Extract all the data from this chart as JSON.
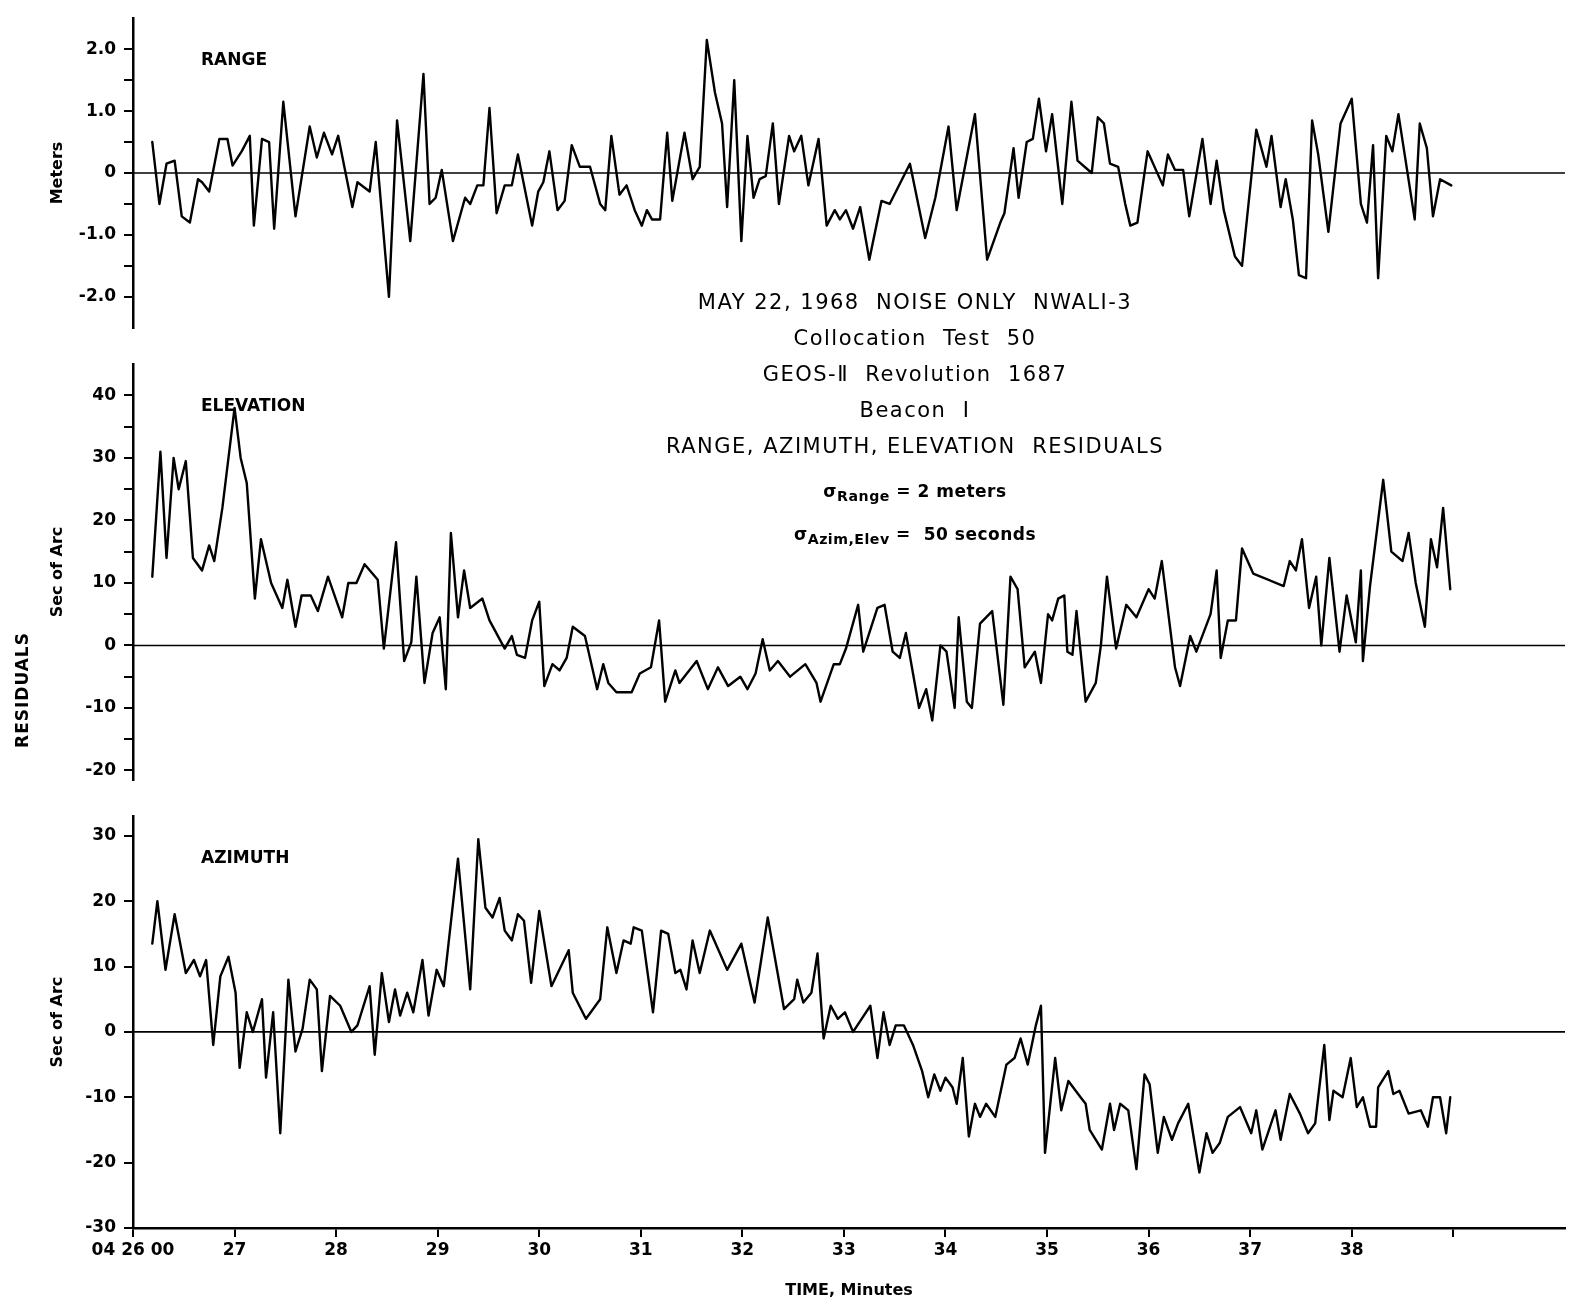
{
  "chart_data": [
    {
      "type": "line",
      "title": "RANGE",
      "ylabel": "Meters",
      "xlim": [
        26,
        40.1
      ],
      "ylim": [
        -2.5,
        2.5
      ],
      "yticks": [
        {
          "value": 2,
          "label": "2.0"
        },
        {
          "value": 1.5,
          "label": null
        },
        {
          "value": 1,
          "label": "1.0"
        },
        {
          "value": 0.5,
          "label": null
        },
        0,
        {
          "value": -0.5,
          "label": null
        },
        {
          "value": -1,
          "label": "-1.0"
        },
        {
          "value": -1.5,
          "label": null
        },
        {
          "value": -2,
          "label": "-2.0"
        }
      ],
      "tick_labels": "y",
      "marker": "none",
      "ref_lines": [
        {
          "axis": "y",
          "value": 0
        }
      ],
      "series": [
        {
          "color": "#000000",
          "x": [
            26.19,
            26.26,
            26.33,
            26.41,
            26.48,
            26.56,
            26.64,
            26.68,
            26.75,
            26.85,
            26.93,
            26.98,
            27.07,
            27.15,
            27.19,
            27.27,
            27.34,
            27.39,
            27.48,
            27.6,
            27.74,
            27.81,
            27.88,
            27.96,
            28.02,
            28.16,
            28.21,
            28.33,
            28.39,
            28.52,
            28.6,
            28.73,
            28.86,
            28.92,
            28.98,
            29.04,
            29.15,
            29.27,
            29.32,
            29.39,
            29.45,
            29.51,
            29.58,
            29.66,
            29.73,
            29.79,
            29.93,
            29.99,
            30.04,
            30.1,
            30.18,
            30.25,
            30.32,
            30.4,
            30.5,
            30.6,
            30.65,
            30.71,
            30.79,
            30.86,
            30.94,
            31.01,
            31.06,
            31.11,
            31.19,
            31.26,
            31.31,
            31.43,
            31.51,
            31.58,
            31.65,
            31.73,
            31.8,
            31.85,
            31.92,
            31.99,
            32.05,
            32.11,
            32.17,
            32.23,
            32.3,
            32.36,
            32.46,
            32.51,
            32.58,
            32.65,
            32.75,
            32.83,
            32.91,
            32.96,
            33.02,
            33.09,
            33.16,
            33.25,
            33.37,
            33.45,
            33.65,
            33.8,
            33.9,
            34.03,
            34.11,
            34.29,
            34.41,
            34.54,
            34.58,
            34.67,
            34.72,
            34.8,
            34.86,
            34.92,
            34.99,
            35.05,
            35.15,
            35.24,
            35.3,
            35.44,
            35.5,
            35.56,
            35.62,
            35.7,
            35.77,
            35.82,
            35.89,
            35.99,
            36.14,
            36.19,
            36.26,
            36.34,
            36.4,
            36.53,
            36.61,
            36.67,
            36.74,
            36.85,
            36.92,
            37.06,
            37.16,
            37.21,
            37.3,
            37.35,
            37.42,
            37.48,
            37.55,
            37.61,
            37.67,
            37.77,
            37.89,
            38.0,
            38.09,
            38.15,
            38.21,
            38.26,
            38.34,
            38.4,
            38.46,
            38.62,
            38.67,
            38.74,
            38.8,
            38.87,
            38.98
          ],
          "values": [
            0.5,
            -0.5,
            0.15,
            0.2,
            -0.7,
            -0.8,
            -0.1,
            -0.15,
            -0.3,
            0.55,
            0.55,
            0.12,
            0.35,
            0.6,
            -0.85,
            0.55,
            0.5,
            -0.9,
            1.15,
            -0.7,
            0.75,
            0.25,
            0.65,
            0.3,
            0.6,
            -0.55,
            -0.15,
            -0.3,
            0.5,
            -2.0,
            0.85,
            -1.1,
            1.6,
            -0.5,
            -0.4,
            0.05,
            -1.1,
            -0.4,
            -0.5,
            -0.2,
            -0.2,
            1.05,
            -0.65,
            -0.2,
            -0.2,
            0.3,
            -0.85,
            -0.3,
            -0.15,
            0.35,
            -0.6,
            -0.45,
            0.45,
            0.1,
            0.1,
            -0.5,
            -0.6,
            0.6,
            -0.35,
            -0.2,
            -0.6,
            -0.85,
            -0.6,
            -0.75,
            -0.75,
            0.65,
            -0.45,
            0.65,
            -0.1,
            0.1,
            2.15,
            1.3,
            0.8,
            -0.55,
            1.5,
            -1.1,
            0.6,
            -0.4,
            -0.1,
            -0.05,
            0.8,
            -0.5,
            0.6,
            0.35,
            0.6,
            -0.2,
            0.55,
            -0.85,
            -0.6,
            -0.75,
            -0.6,
            -0.9,
            -0.55,
            -1.4,
            -0.45,
            -0.5,
            0.15,
            -1.05,
            -0.4,
            0.75,
            -0.6,
            0.95,
            -1.4,
            -0.8,
            -0.65,
            0.4,
            -0.4,
            0.5,
            0.55,
            1.2,
            0.35,
            0.95,
            -0.5,
            1.15,
            0.2,
            0.0,
            0.9,
            0.8,
            0.15,
            0.1,
            -0.5,
            -0.85,
            -0.8,
            0.35,
            -0.2,
            0.3,
            0.05,
            0.05,
            -0.7,
            0.55,
            -0.5,
            0.2,
            -0.6,
            -1.35,
            -1.5,
            0.7,
            0.1,
            0.6,
            -0.55,
            -0.1,
            -0.75,
            -1.65,
            -1.7,
            0.85,
            0.3,
            -0.95,
            0.8,
            1.2,
            -0.5,
            -0.8,
            0.45,
            -1.7,
            0.6,
            0.35,
            0.95,
            -0.75,
            0.8,
            0.4,
            -0.7,
            -0.1,
            -0.2
          ]
        }
      ]
    },
    {
      "type": "line",
      "title": "ELEVATION",
      "ylabel": "Sec of Arc",
      "xlim": [
        26,
        40.1
      ],
      "ylim": [
        -21.5,
        45
      ],
      "yticks": [
        40,
        {
          "value": 35,
          "label": null
        },
        30,
        {
          "value": 25,
          "label": null
        },
        20,
        {
          "value": 15,
          "label": null
        },
        10,
        {
          "value": 5,
          "label": null
        },
        0,
        {
          "value": -5,
          "label": null
        },
        -10,
        {
          "value": -15,
          "label": null
        },
        -20
      ],
      "tick_labels": "y",
      "marker": "none",
      "ref_lines": [
        {
          "axis": "y",
          "value": 0
        }
      ],
      "annotations": [
        "MAY 22, 1968  NOISE ONLY  NWALI-3",
        "Collocation  Test  50",
        "GEOS-Ⅱ  Revolution  1687",
        "Beacon  I",
        "RANGE, AZIMUTH, ELEVATION  RESIDUALS",
        "σ$_{Range}$ = 2 meters",
        "σ$_{Azim,Elev}$ =  50 seconds",
        "RESIDUALS"
      ],
      "series": [
        {
          "color": "#000000",
          "x": [
            26.19,
            26.27,
            26.33,
            26.4,
            26.45,
            26.52,
            26.59,
            26.68,
            26.75,
            26.8,
            26.88,
            27.0,
            27.06,
            27.12,
            27.2,
            27.26,
            27.36,
            27.47,
            27.52,
            27.6,
            27.66,
            27.75,
            27.82,
            27.92,
            28.06,
            28.12,
            28.2,
            28.28,
            28.41,
            28.47,
            28.59,
            28.67,
            28.74,
            28.79,
            28.87,
            28.95,
            29.02,
            29.08,
            29.13,
            29.2,
            29.26,
            29.32,
            29.44,
            29.51,
            29.66,
            29.73,
            29.78,
            29.86,
            29.93,
            30.0,
            30.05,
            30.13,
            30.2,
            30.27,
            30.33,
            30.45,
            30.57,
            30.63,
            30.68,
            30.76,
            30.91,
            30.99,
            31.1,
            31.18,
            31.24,
            31.34,
            31.38,
            31.55,
            31.66,
            31.76,
            31.86,
            31.98,
            32.05,
            32.13,
            32.2,
            32.27,
            32.35,
            32.47,
            32.62,
            32.73,
            32.77,
            32.9,
            32.96,
            33.02,
            33.14,
            33.19,
            33.33,
            33.4,
            33.48,
            33.55,
            33.61,
            33.74,
            33.81,
            33.87,
            33.95,
            34.01,
            34.09,
            34.13,
            34.21,
            34.26,
            34.34,
            34.46,
            34.57,
            34.64,
            34.71,
            34.78,
            34.88,
            34.94,
            35.01,
            35.05,
            35.11,
            35.17,
            35.2,
            35.25,
            35.29,
            35.38,
            35.48,
            35.53,
            35.59,
            35.68,
            35.78,
            35.88,
            36.0,
            36.06,
            36.13,
            36.26,
            36.31,
            36.41,
            36.47,
            36.61,
            36.67,
            36.71,
            36.78,
            36.86,
            36.92,
            37.03,
            37.33,
            37.39,
            37.45,
            37.51,
            37.58,
            37.65,
            37.7,
            37.78,
            37.88,
            37.95,
            38.04,
            38.09,
            38.11,
            38.18,
            38.31,
            38.39,
            38.5,
            38.56,
            38.63,
            38.72,
            38.78,
            38.84,
            38.9,
            38.97
          ],
          "values": [
            11,
            31,
            14,
            30,
            25,
            29.5,
            14,
            12,
            16,
            13.5,
            22,
            38,
            30,
            26,
            7.5,
            17,
            10,
            6,
            10.5,
            3,
            8,
            8,
            5.5,
            11,
            4.5,
            10,
            10,
            13,
            10.5,
            -0.5,
            16.5,
            -2.5,
            0.5,
            11,
            -6,
            2,
            4.5,
            -7,
            18,
            4.5,
            12,
            6,
            7.5,
            4,
            -0.5,
            1.5,
            -1.5,
            -2,
            4,
            7,
            -6.5,
            -3,
            -4,
            -2,
            3,
            1.5,
            -7,
            -3,
            -6,
            -7.5,
            -7.5,
            -4.5,
            -3.5,
            4,
            -9,
            -4,
            -6,
            -2.5,
            -7,
            -3.5,
            -6.5,
            -5,
            -7,
            -4.5,
            1,
            -4,
            -2.5,
            -5,
            -3,
            -6,
            -9,
            -3,
            -3,
            -0.5,
            6.5,
            -1,
            6,
            6.5,
            -1,
            -2,
            2,
            -10,
            -7,
            -12,
            0,
            -1,
            -10,
            4.5,
            -9,
            -10,
            3.5,
            5.5,
            -9.5,
            11,
            9,
            -3.5,
            -1,
            -6,
            5,
            4,
            7.5,
            8,
            -1,
            -1.5,
            5.5,
            -9,
            -6,
            0,
            11,
            -0.5,
            6.5,
            4.5,
            9,
            7.5,
            13.5,
            -3.5,
            -6.5,
            1.5,
            -1,
            5,
            12,
            -2,
            4,
            4,
            15.5,
            11.5,
            9.5,
            13.5,
            12,
            17,
            6,
            11,
            0,
            14,
            -1,
            8,
            0.5,
            12,
            -2.5,
            9.5,
            26.5,
            15,
            13.5,
            18,
            10,
            3,
            17,
            12.5,
            22,
            9
          ]
        }
      ]
    },
    {
      "type": "line",
      "title": "AZIMUTH",
      "ylabel": "Sec of Arc",
      "xlabel": "TIME, Minutes",
      "xlim": [
        26,
        40.1
      ],
      "ylim": [
        -30,
        33
      ],
      "xticks": [
        {
          "value": 26,
          "label": "04 26 00"
        },
        27,
        28,
        29,
        30,
        31,
        32,
        33,
        34,
        35,
        36,
        37,
        38,
        {
          "value": 39,
          "label": null
        }
      ],
      "yticks": [
        30,
        20,
        10,
        0,
        -10,
        -20,
        -30
      ],
      "marker": "none",
      "ref_lines": [
        {
          "axis": "y",
          "value": 0
        }
      ],
      "series": [
        {
          "color": "#000000",
          "x": [
            26.19,
            26.24,
            26.32,
            26.41,
            26.52,
            26.6,
            26.66,
            26.72,
            26.79,
            26.86,
            26.94,
            27.01,
            27.05,
            27.12,
            27.18,
            27.27,
            27.31,
            27.38,
            27.45,
            27.53,
            27.6,
            27.67,
            27.74,
            27.81,
            27.86,
            27.94,
            28.04,
            28.15,
            28.21,
            28.33,
            28.38,
            28.45,
            28.52,
            28.58,
            28.63,
            28.7,
            28.76,
            28.85,
            28.91,
            28.99,
            29.06,
            29.2,
            29.32,
            29.4,
            29.47,
            29.54,
            29.61,
            29.66,
            29.73,
            29.79,
            29.85,
            29.92,
            30.0,
            30.12,
            30.29,
            30.33,
            30.46,
            30.6,
            30.67,
            30.76,
            30.83,
            30.9,
            30.93,
            31.01,
            31.12,
            31.2,
            31.27,
            31.34,
            31.39,
            31.45,
            31.51,
            31.58,
            31.68,
            31.85,
            31.99,
            32.12,
            32.25,
            32.41,
            32.51,
            32.54,
            32.6,
            32.68,
            32.74,
            32.8,
            32.87,
            32.94,
            33.01,
            33.09,
            33.26,
            33.33,
            33.39,
            33.45,
            33.51,
            33.59,
            33.68,
            33.77,
            33.83,
            33.89,
            33.95,
            34.0,
            34.07,
            34.11,
            34.17,
            34.23,
            34.29,
            34.34,
            34.4,
            34.49,
            34.6,
            34.68,
            34.74,
            34.81,
            34.89,
            34.94,
            34.98,
            35.08,
            35.14,
            35.21,
            35.33,
            35.38,
            35.42,
            35.54,
            35.62,
            35.66,
            35.72,
            35.8,
            35.88,
            35.96,
            36.01,
            36.09,
            36.15,
            36.23,
            36.29,
            36.39,
            36.5,
            36.57,
            36.63,
            36.7,
            36.78,
            36.9,
            37.01,
            37.06,
            37.12,
            37.25,
            37.3,
            37.39,
            37.49,
            37.57,
            37.64,
            37.73,
            37.78,
            37.82,
            37.91,
            37.99,
            38.05,
            38.11,
            38.18,
            38.24,
            38.26,
            38.36,
            38.41,
            38.47,
            38.56,
            38.68,
            38.75,
            38.8,
            38.87,
            38.93,
            38.97
          ],
          "values": [
            13.5,
            20,
            9.5,
            18,
            9,
            11,
            8.5,
            11,
            -2,
            8.5,
            11.5,
            6,
            -5.5,
            3,
            0,
            5,
            -7,
            3,
            -15.5,
            8,
            -3,
            0.5,
            8,
            6.5,
            -6,
            5.5,
            4,
            0,
            1,
            7,
            -3.5,
            9,
            1.5,
            6.5,
            2.5,
            6,
            3,
            11,
            2.5,
            9.5,
            7,
            26.5,
            6.5,
            29.5,
            19,
            17.5,
            20.5,
            15.5,
            14,
            18,
            17,
            7.5,
            18.5,
            7,
            12.5,
            6,
            2,
            5,
            16,
            9,
            14,
            13.5,
            16,
            15.5,
            3,
            15.5,
            15,
            9,
            9.5,
            6.5,
            14,
            9,
            15.5,
            9.5,
            13.5,
            4.5,
            17.5,
            3.5,
            5,
            8,
            4.5,
            6,
            12,
            -1,
            4,
            2,
            3,
            0,
            4,
            -4,
            3,
            -2,
            1,
            1,
            -2,
            -6,
            -10,
            -6.5,
            -9,
            -7,
            -8.5,
            -11,
            -4,
            -16,
            -11,
            -13,
            -11,
            -13,
            -5,
            -4,
            -1,
            -5,
            1,
            4,
            -18.5,
            -4,
            -12,
            -7.5,
            -10,
            -11,
            -15,
            -18,
            -11,
            -15,
            -11,
            -12,
            -21,
            -6.5,
            -8,
            -18.5,
            -13,
            -16.5,
            -14,
            -11,
            -21.5,
            -15.5,
            -18.5,
            -17,
            -13,
            -11.5,
            -15.5,
            -12,
            -18,
            -12,
            -16.5,
            -9.5,
            -12.5,
            -15.5,
            -14,
            -2,
            -13.5,
            -9,
            -10,
            -4,
            -11.5,
            -10,
            -14.5,
            -14.5,
            -8.5,
            -6,
            -9.5,
            -9,
            -12.5,
            -12,
            -14.5,
            -10,
            -10,
            -15.5,
            -10
          ]
        }
      ]
    }
  ]
}
